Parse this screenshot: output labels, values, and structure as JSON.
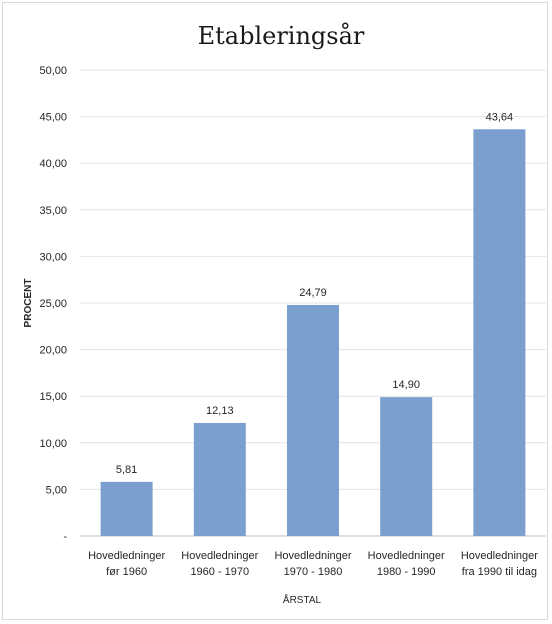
{
  "chart_data": {
    "type": "bar",
    "title": "Etableringsår",
    "xlabel": "ÅRSTAL",
    "ylabel": "PROCENT",
    "categories": [
      [
        "Hovedledninger",
        "før 1960"
      ],
      [
        "Hovedledninger",
        "1960 - 1970"
      ],
      [
        "Hovedledninger",
        "1970 - 1980"
      ],
      [
        "Hovedledninger",
        "1980 - 1990"
      ],
      [
        "Hovedledninger",
        "fra 1990 til idag"
      ]
    ],
    "values": [
      5.81,
      12.13,
      24.79,
      14.9,
      43.64
    ],
    "value_labels": [
      "5,81",
      "12,13",
      "24,79",
      "14,90",
      "43,64"
    ],
    "ylim": [
      0,
      50
    ],
    "yticks": [
      0,
      5,
      10,
      15,
      20,
      25,
      30,
      35,
      40,
      45,
      50
    ],
    "ytick_labels": [
      "-",
      "5,00",
      "10,00",
      "15,00",
      "20,00",
      "25,00",
      "30,00",
      "35,00",
      "40,00",
      "45,00",
      "50,00"
    ],
    "grid": true,
    "bar_color": "#7b9fcf",
    "grid_color": "#e4e4e4"
  }
}
